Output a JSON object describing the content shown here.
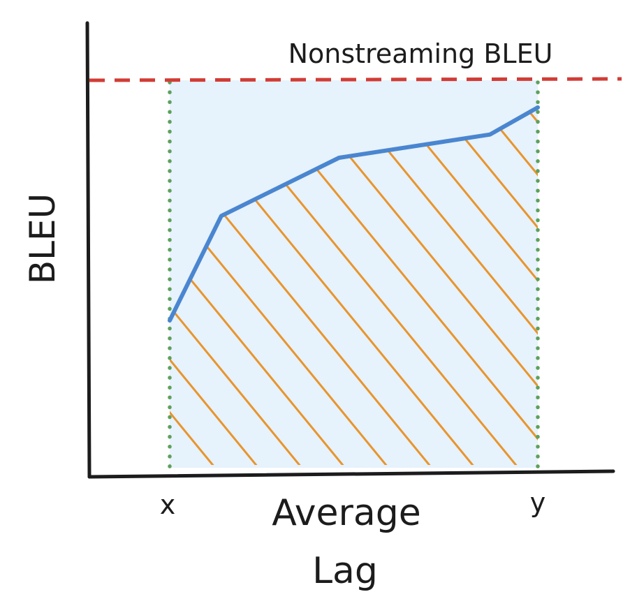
{
  "chart_data": {
    "type": "line",
    "ylabel": "BLEU",
    "xlabel": "Average\nLag",
    "xlabel_line1": "Average",
    "xlabel_line2": "Lag",
    "x_tick_start": "x",
    "x_tick_end": "y",
    "reference_label": "Nonstreaming BLEU",
    "series": [
      {
        "x": [
          0.0,
          0.14,
          0.46,
          0.87,
          1.0
        ],
        "y": [
          0.38,
          0.65,
          0.8,
          0.86,
          0.93
        ]
      }
    ],
    "reference_y": 1.0,
    "xlim": [
      0,
      1
    ],
    "ylim": [
      0,
      1
    ]
  },
  "colors": {
    "axis": "#1c1c1c",
    "curve": "#4a86d0",
    "reference": "#d13c35",
    "bounds": "#5ea05b",
    "region_fill": "#e6f2fc",
    "hatch": "#e8952c"
  }
}
